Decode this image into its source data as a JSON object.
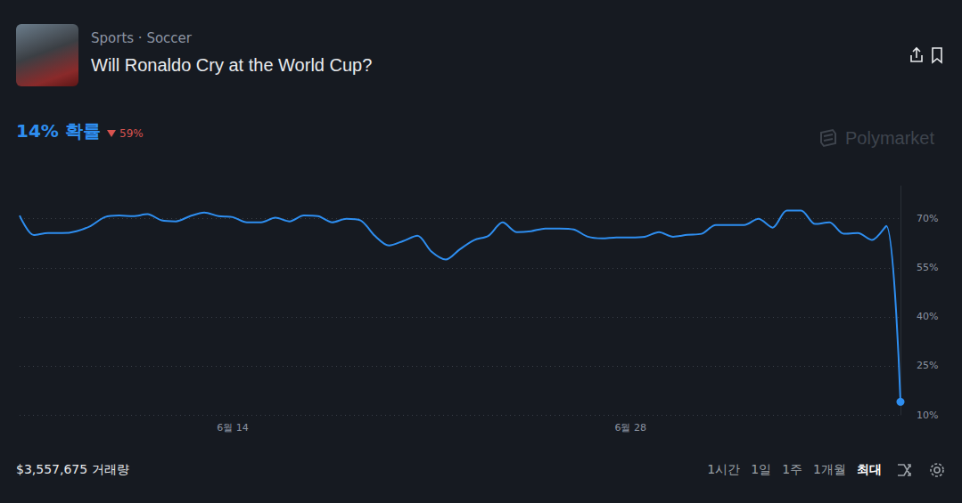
{
  "header": {
    "breadcrumb": "Sports · Soccer",
    "title": "Will Ronaldo Cry at the World Cup?",
    "chance_label": "14% 확률",
    "change": "59%",
    "watermark": "Polymarket"
  },
  "chart_data": {
    "type": "line",
    "color": "#2e8ef0",
    "grid": true,
    "categories": [
      null,
      null,
      null,
      null,
      null,
      null,
      null,
      null,
      null,
      null,
      null,
      null,
      null,
      null,
      null,
      "6월 14",
      null,
      null,
      null,
      null,
      null,
      null,
      null,
      null,
      null,
      null,
      null,
      null,
      null,
      null,
      null,
      null,
      null,
      null,
      null,
      null,
      null,
      null,
      null,
      null,
      null,
      null,
      null,
      "6월 28",
      null,
      null,
      null,
      null,
      null,
      null,
      null,
      null,
      null,
      null,
      null,
      null,
      null,
      null,
      null,
      null,
      null,
      null,
      null
    ],
    "values": [
      71,
      65,
      65.6,
      65.6,
      66.2,
      67.8,
      70.5,
      71,
      70.8,
      71.4,
      69.5,
      69.2,
      70.8,
      71.9,
      70.8,
      70.5,
      68.9,
      68.9,
      70.3,
      69.2,
      71,
      70.8,
      68.9,
      70,
      69.5,
      64.8,
      61.8,
      63.2,
      64.8,
      59.9,
      57.5,
      60.7,
      63.5,
      64.8,
      68.9,
      65.9,
      66.2,
      67,
      67,
      66.7,
      64.5,
      64,
      64.3,
      64.3,
      64.5,
      65.9,
      64.5,
      65.1,
      65.4,
      68.1,
      68.1,
      68.1,
      70,
      67.3,
      72.5,
      72.5,
      68.4,
      68.9,
      65.4,
      65.6,
      63.5,
      67.8,
      14
    ],
    "ylim": [
      10,
      80
    ],
    "yticks": [
      {
        "value": 10,
        "label": "10%"
      },
      {
        "value": 25,
        "label": "25%"
      },
      {
        "value": 40,
        "label": "40%"
      },
      {
        "value": 55,
        "label": "55%"
      },
      {
        "value": 70,
        "label": "70%"
      }
    ]
  },
  "footer": {
    "volume": "$3,557,675 거래량",
    "ranges": [
      "1시간",
      "1일",
      "1주",
      "1개월",
      "최대"
    ],
    "active_range": "최대"
  }
}
